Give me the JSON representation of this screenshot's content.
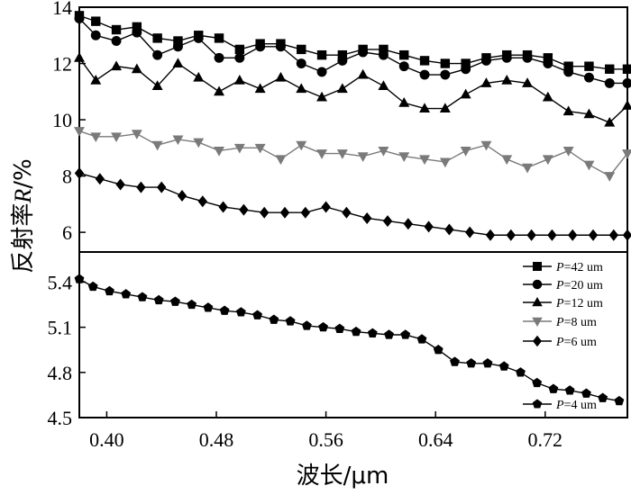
{
  "chart_data": [
    {
      "type": "line",
      "panel": "top",
      "ylabel_prefix": "反射率",
      "ylabel_var": "R",
      "ylabel_suffix": "/%",
      "xlim": [
        0.38,
        0.78
      ],
      "ylim": [
        5.3,
        14
      ],
      "yticks": [
        "6",
        "8",
        "10",
        "12",
        "14"
      ],
      "ytick_values": [
        6,
        8,
        10,
        12,
        14
      ],
      "series": [
        {
          "name": "P=42 um",
          "marker": "square",
          "x": [
            0.38,
            0.392,
            0.407,
            0.422,
            0.437,
            0.452,
            0.467,
            0.482,
            0.497,
            0.512,
            0.527,
            0.542,
            0.557,
            0.572,
            0.587,
            0.602,
            0.617,
            0.632,
            0.647,
            0.662,
            0.677,
            0.692,
            0.707,
            0.722,
            0.737,
            0.752,
            0.767,
            0.78
          ],
          "y": [
            13.7,
            13.5,
            13.2,
            13.3,
            12.9,
            12.8,
            13.0,
            12.9,
            12.5,
            12.7,
            12.7,
            12.5,
            12.3,
            12.3,
            12.5,
            12.5,
            12.3,
            12.1,
            12.0,
            12.0,
            12.2,
            12.3,
            12.3,
            12.2,
            11.9,
            11.9,
            11.8,
            11.8
          ]
        },
        {
          "name": "P=20 um",
          "marker": "circle",
          "x": [
            0.38,
            0.392,
            0.407,
            0.422,
            0.437,
            0.452,
            0.467,
            0.482,
            0.497,
            0.512,
            0.527,
            0.542,
            0.557,
            0.572,
            0.587,
            0.602,
            0.617,
            0.632,
            0.647,
            0.662,
            0.677,
            0.692,
            0.707,
            0.722,
            0.737,
            0.752,
            0.767,
            0.78
          ],
          "y": [
            13.6,
            13.0,
            12.8,
            13.1,
            12.3,
            12.6,
            12.9,
            12.2,
            12.2,
            12.6,
            12.6,
            12.0,
            11.7,
            12.1,
            12.4,
            12.3,
            11.9,
            11.6,
            11.6,
            11.8,
            12.1,
            12.2,
            12.2,
            12.0,
            11.7,
            11.5,
            11.3,
            11.3
          ]
        },
        {
          "name": "P=12 um",
          "marker": "triangle-up",
          "x": [
            0.38,
            0.392,
            0.407,
            0.422,
            0.437,
            0.452,
            0.467,
            0.482,
            0.497,
            0.512,
            0.527,
            0.542,
            0.557,
            0.572,
            0.587,
            0.602,
            0.617,
            0.632,
            0.647,
            0.662,
            0.677,
            0.692,
            0.707,
            0.722,
            0.737,
            0.752,
            0.767,
            0.78
          ],
          "y": [
            12.2,
            11.4,
            11.9,
            11.8,
            11.2,
            12.0,
            11.5,
            11.0,
            11.4,
            11.1,
            11.5,
            11.1,
            10.8,
            11.1,
            11.6,
            11.2,
            10.6,
            10.4,
            10.4,
            10.9,
            11.3,
            11.4,
            11.3,
            10.8,
            10.3,
            10.2,
            9.9,
            10.5
          ]
        },
        {
          "name": "P=8 um",
          "marker": "triangle-down",
          "x": [
            0.38,
            0.392,
            0.407,
            0.422,
            0.437,
            0.452,
            0.467,
            0.482,
            0.497,
            0.512,
            0.527,
            0.542,
            0.557,
            0.572,
            0.587,
            0.602,
            0.617,
            0.632,
            0.647,
            0.662,
            0.677,
            0.692,
            0.707,
            0.722,
            0.737,
            0.752,
            0.767,
            0.78
          ],
          "y": [
            9.6,
            9.4,
            9.4,
            9.5,
            9.1,
            9.3,
            9.2,
            8.9,
            9.0,
            9.0,
            8.6,
            9.1,
            8.8,
            8.8,
            8.7,
            8.9,
            8.7,
            8.6,
            8.5,
            8.9,
            9.1,
            8.6,
            8.3,
            8.6,
            8.9,
            8.4,
            8.0,
            8.8
          ]
        },
        {
          "name": "P=6 um",
          "marker": "diamond",
          "x": [
            0.38,
            0.395,
            0.41,
            0.425,
            0.44,
            0.455,
            0.47,
            0.485,
            0.5,
            0.515,
            0.53,
            0.545,
            0.56,
            0.575,
            0.59,
            0.605,
            0.62,
            0.635,
            0.65,
            0.665,
            0.68,
            0.695,
            0.71,
            0.725,
            0.74,
            0.755,
            0.77,
            0.78
          ],
          "y": [
            8.1,
            7.9,
            7.7,
            7.6,
            7.6,
            7.3,
            7.1,
            6.9,
            6.8,
            6.7,
            6.7,
            6.7,
            6.9,
            6.7,
            6.5,
            6.4,
            6.3,
            6.2,
            6.1,
            6.0,
            5.9,
            5.9,
            5.9,
            5.9,
            5.9,
            5.9,
            5.9,
            5.9
          ]
        }
      ]
    },
    {
      "type": "line",
      "panel": "bottom",
      "xlabel": "波长/μm",
      "xlim": [
        0.38,
        0.78
      ],
      "ylim": [
        4.5,
        5.6
      ],
      "xticks": [
        "0.40",
        "0.48",
        "0.56",
        "0.64",
        "0.72"
      ],
      "xtick_values": [
        0.4,
        0.48,
        0.56,
        0.64,
        0.72
      ],
      "yticks": [
        "4.5",
        "4.8",
        "5.1",
        "5.4"
      ],
      "ytick_values": [
        4.5,
        4.8,
        5.1,
        5.4
      ],
      "series": [
        {
          "name": "P=4 um",
          "marker": "pentagon",
          "x": [
            0.38,
            0.39,
            0.402,
            0.414,
            0.426,
            0.438,
            0.45,
            0.462,
            0.474,
            0.486,
            0.498,
            0.51,
            0.522,
            0.534,
            0.546,
            0.558,
            0.57,
            0.582,
            0.594,
            0.606,
            0.618,
            0.63,
            0.642,
            0.654,
            0.666,
            0.678,
            0.69,
            0.702,
            0.714,
            0.726,
            0.738,
            0.75,
            0.762,
            0.774
          ],
          "y": [
            5.42,
            5.37,
            5.34,
            5.32,
            5.3,
            5.28,
            5.27,
            5.25,
            5.23,
            5.21,
            5.2,
            5.18,
            5.15,
            5.14,
            5.11,
            5.1,
            5.09,
            5.07,
            5.06,
            5.05,
            5.05,
            5.02,
            4.95,
            4.87,
            4.86,
            4.86,
            4.84,
            4.8,
            4.73,
            4.69,
            4.68,
            4.66,
            4.63,
            4.61
          ]
        }
      ]
    }
  ],
  "legend": [
    {
      "prefix": "P",
      "text": "=42 um",
      "marker": "square"
    },
    {
      "prefix": "P",
      "text": "=20 um",
      "marker": "circle"
    },
    {
      "prefix": "P",
      "text": "=12 um",
      "marker": "triangle-up"
    },
    {
      "prefix": "P",
      "text": "=8 um",
      "marker": "triangle-down"
    },
    {
      "prefix": "P",
      "text": "=6 um",
      "marker": "diamond"
    },
    {
      "prefix": "P",
      "text": "=4 um",
      "marker": "pentagon"
    }
  ],
  "colors": {
    "P=42 um": "#000000",
    "P=20 um": "#000000",
    "P=12 um": "#000000",
    "P=8 um": "#7a7a7a",
    "P=6 um": "#000000",
    "P=4 um": "#000000"
  }
}
